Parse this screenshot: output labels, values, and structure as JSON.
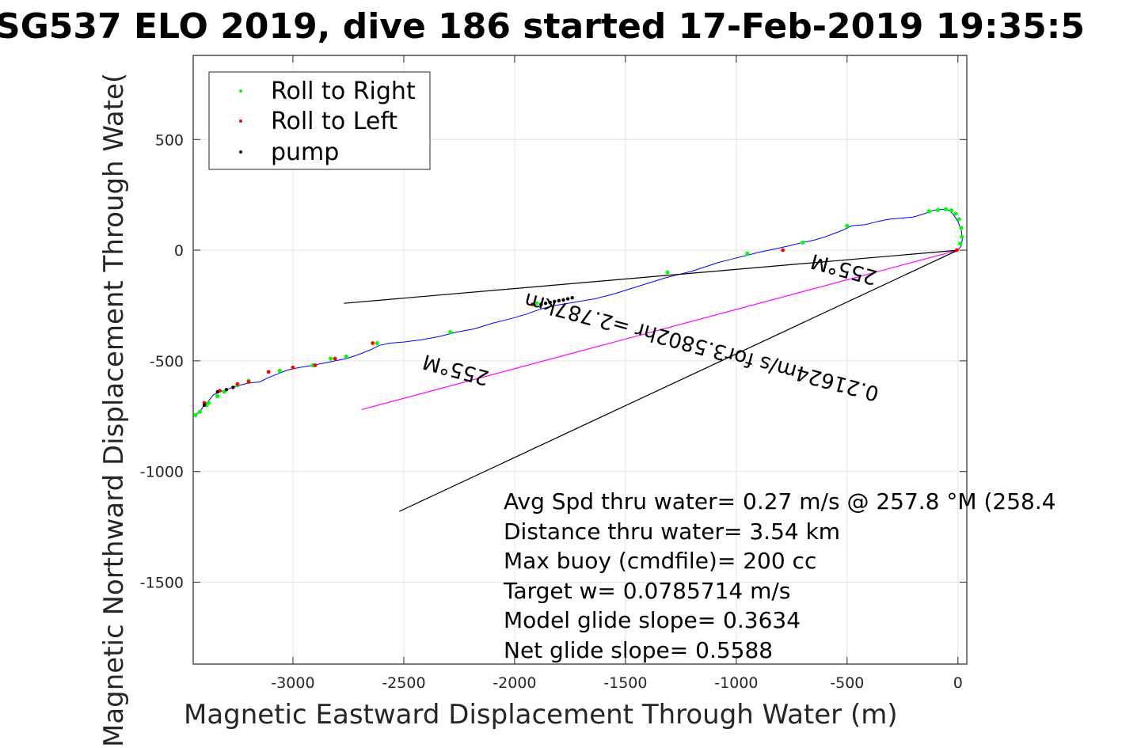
{
  "chart_data": {
    "type": "line",
    "title": "SG537 ELO 2019, dive 186 started 17-Feb-2019 19:35:5",
    "xlabel": "Magnetic Eastward Displacement Through Water (m)",
    "ylabel": "Magnetic Northward Displacement Through Wate(",
    "xlim": [
      -3450,
      40
    ],
    "ylim": [
      -1870,
      880
    ],
    "xticks": [
      -3000,
      -2500,
      -2000,
      -1500,
      -1000,
      -500,
      0
    ],
    "xtick_labels": [
      "-3000",
      "-2500",
      "-2000",
      "-1500",
      "-1000",
      "-500",
      "0"
    ],
    "yticks": [
      -1500,
      -1000,
      -500,
      0,
      500
    ],
    "ytick_labels": [
      "-1500",
      "-1000",
      "-500",
      "0",
      "500"
    ],
    "grid": true,
    "legend": {
      "placement": "top-left",
      "entries": [
        {
          "label": "Roll to Right",
          "color": "#00ff00"
        },
        {
          "label": "Roll to Left",
          "color": "#ff0000"
        },
        {
          "label": "pump",
          "color": "#000000"
        }
      ]
    },
    "series": [
      {
        "color": "#0000ff",
        "x": [
          0,
          15,
          20,
          15,
          0,
          -20,
          -40,
          -70,
          -110,
          -150,
          -200,
          -250,
          -310,
          -360,
          -420,
          -480,
          -520,
          -560,
          -600,
          -650,
          -700,
          -760,
          -830,
          -900,
          -960,
          -1020,
          -1080,
          -1140,
          -1200,
          -1260,
          -1320,
          -1400,
          -1480,
          -1560,
          -1640,
          -1700,
          -1760,
          -1820,
          -1880,
          -1950,
          -2020,
          -2100,
          -2180,
          -2260,
          -2340,
          -2420,
          -2500,
          -2560,
          -2610,
          -2650,
          -2700,
          -2760,
          -2810,
          -2860,
          -2910,
          -2970,
          -3020,
          -3060,
          -3110,
          -3150,
          -3200,
          -3260,
          -3300,
          -3330,
          -3360,
          -3380,
          -3400,
          -3420,
          -3450
        ],
        "y": [
          0,
          20,
          50,
          90,
          130,
          160,
          180,
          185,
          180,
          165,
          150,
          145,
          140,
          130,
          115,
          110,
          90,
          75,
          60,
          45,
          35,
          20,
          5,
          -10,
          -25,
          -40,
          -55,
          -75,
          -95,
          -110,
          -125,
          -150,
          -175,
          -200,
          -220,
          -230,
          -240,
          -250,
          -265,
          -290,
          -310,
          -330,
          -355,
          -370,
          -390,
          -405,
          -415,
          -420,
          -430,
          -450,
          -470,
          -490,
          -500,
          -510,
          -520,
          -530,
          -540,
          -555,
          -575,
          -595,
          -600,
          -615,
          -630,
          -640,
          -655,
          -680,
          -700,
          -730,
          -750
        ]
      },
      {
        "color": "#ff00ff",
        "x": [
          0,
          -2690
        ],
        "y": [
          0,
          -720
        ]
      },
      {
        "color": "#000000",
        "x": [
          0,
          -2770
        ],
        "y": [
          0,
          -240
        ]
      },
      {
        "color": "#000000",
        "x": [
          0,
          -2520
        ],
        "y": [
          0,
          -1180
        ]
      }
    ],
    "right_roll_points": {
      "x": [
        10,
        18,
        15,
        5,
        -10,
        -30,
        -55,
        -90,
        -130,
        -500,
        -700,
        -950,
        -1310,
        -1900,
        -2290,
        -2620,
        -2760,
        -2830,
        -2910,
        -3060,
        -3200,
        -3250,
        -3310,
        -3340,
        -3380,
        -3390,
        -3420,
        -3440
      ],
      "y": [
        30,
        60,
        100,
        140,
        165,
        180,
        185,
        182,
        175,
        110,
        35,
        -15,
        -100,
        -240,
        -370,
        -420,
        -480,
        -490,
        -520,
        -545,
        -590,
        -610,
        -640,
        -660,
        -690,
        -700,
        -730,
        -745
      ]
    },
    "left_roll_points": {
      "x": [
        -5,
        -790,
        -1920,
        -2640,
        -2810,
        -2900,
        -3000,
        -3110,
        -3200,
        -3250,
        -3330,
        -3400
      ],
      "y": [
        0,
        0,
        -245,
        -420,
        -490,
        -520,
        -530,
        -550,
        -595,
        -605,
        -635,
        -690
      ]
    },
    "pump_points": {
      "x": [
        -1740,
        -1760,
        -1780,
        -1800,
        -1820,
        -1840,
        -1860,
        -1880,
        -3270,
        -3300,
        -3340,
        -3400
      ],
      "y": [
        -215,
        -220,
        -225,
        -228,
        -232,
        -236,
        -240,
        -244,
        -620,
        -630,
        -640,
        -700
      ]
    },
    "annotations": [
      "0.21624m/s for3.5802hr =2.787km",
      "255°M",
      "255°M"
    ],
    "text_box": [
      "Avg Spd thru water=  0.27 m/s @ 257.8 °M (258.4",
      "Distance thru water=  3.54 km",
      "Max buoy (cmdfile)= 200 cc",
      "Target w= 0.0785714 m/s",
      "Model glide slope= 0.3634",
      "Net glide slope= 0.5588"
    ]
  }
}
